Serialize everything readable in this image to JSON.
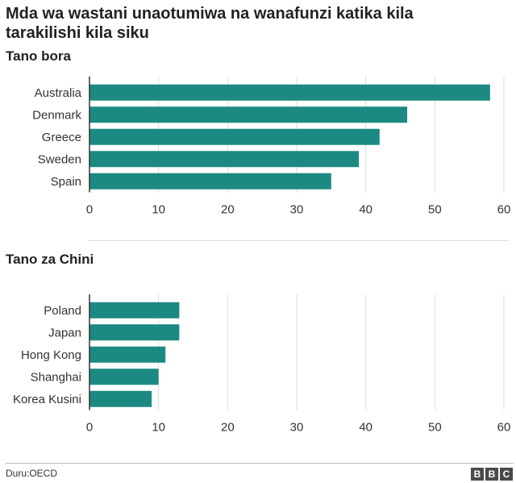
{
  "title": "Mda wa wastani unaotumiwa na wanafunzi katika kila tarakilishi kila siku",
  "source": "Duru:OECD",
  "logo": [
    "B",
    "B",
    "C"
  ],
  "colors": {
    "bar": "#1c8a82",
    "grid": "#dddddd",
    "axis": "#333333"
  },
  "chart_data": [
    {
      "type": "bar",
      "orientation": "horizontal",
      "title": "Tano bora",
      "categories": [
        "Australia",
        "Denmark",
        "Greece",
        "Sweden",
        "Spain"
      ],
      "values": [
        58,
        46,
        42,
        39,
        35
      ],
      "xlim": [
        0,
        60
      ],
      "ticks": [
        0,
        10,
        20,
        30,
        40,
        50,
        60
      ],
      "grid": true
    },
    {
      "type": "bar",
      "orientation": "horizontal",
      "title": "Tano za Chini",
      "categories": [
        "Poland",
        "Japan",
        "Hong Kong",
        "Shanghai",
        "Korea Kusini"
      ],
      "values": [
        13,
        13,
        11,
        10,
        9
      ],
      "xlim": [
        0,
        60
      ],
      "ticks": [
        0,
        10,
        20,
        30,
        40,
        50,
        60
      ],
      "grid": true
    }
  ]
}
